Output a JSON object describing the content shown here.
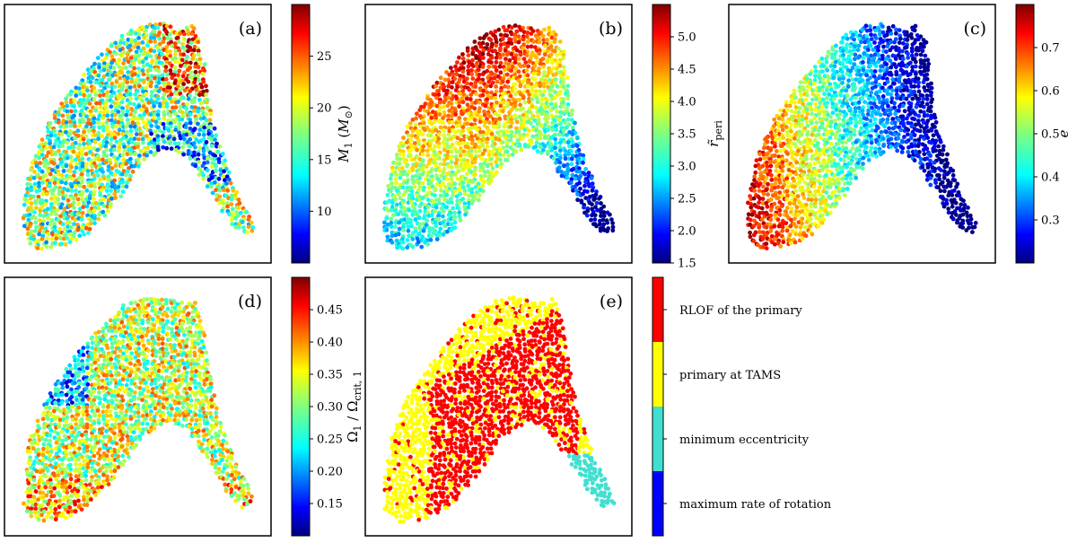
{
  "figure": {
    "description_free": true
  },
  "colors": {
    "jet": [
      "#00007f",
      "#0000ff",
      "#007fff",
      "#00ffff",
      "#7fff7f",
      "#ffff00",
      "#ff7f00",
      "#ff0000",
      "#7f0000"
    ],
    "categorical": {
      "red": "#ff0000",
      "yellow": "#ffff00",
      "cyan": "#40e0d0",
      "blue": "#0000ff"
    }
  },
  "chart_data": [
    {
      "type": "scatter",
      "tag": "(a)",
      "colorbar_label": "M_1 (M_⊙)",
      "colorbar_label_display": "M₁ (M⊙)",
      "cbar_range": [
        5,
        30
      ],
      "ticks": [
        10,
        15,
        20,
        25
      ],
      "tick_labels": [
        "10",
        "15",
        "20",
        "25"
      ],
      "pattern": "noise"
    },
    {
      "type": "scatter",
      "tag": "(b)",
      "colorbar_label_display": "r̃_peri",
      "cbar_range": [
        1.5,
        5.5
      ],
      "ticks": [
        1.5,
        2.0,
        2.5,
        3.0,
        3.5,
        4.0,
        4.5,
        5.0
      ],
      "tick_labels": [
        "1.5",
        "2.0",
        "2.5",
        "3.0",
        "3.5",
        "4.0",
        "4.5",
        "5.0"
      ],
      "pattern": "top-high"
    },
    {
      "type": "scatter",
      "tag": "(c)",
      "colorbar_label_display": "e",
      "cbar_range": [
        0.2,
        0.8
      ],
      "ticks": [
        0.3,
        0.4,
        0.5,
        0.6,
        0.7
      ],
      "tick_labels": [
        "0.3",
        "0.4",
        "0.5",
        "0.6",
        "0.7"
      ],
      "pattern": "left-high"
    },
    {
      "type": "scatter",
      "tag": "(d)",
      "colorbar_label_display": "Ω₁ / Ωcrit, 1",
      "cbar_range": [
        0.1,
        0.5
      ],
      "ticks": [
        0.15,
        0.2,
        0.25,
        0.3,
        0.35,
        0.4,
        0.45
      ],
      "tick_labels": [
        "0.15",
        "0.20",
        "0.25",
        "0.30",
        "0.35",
        "0.40",
        "0.45"
      ],
      "pattern": "noise-mid"
    },
    {
      "type": "scatter",
      "tag": "(e)",
      "categorical": true,
      "categories": [
        "RLOF of the primary",
        "primary at TAMS",
        "minimum eccentricity",
        "maximum rate of rotation"
      ],
      "pattern": "categorical"
    }
  ]
}
